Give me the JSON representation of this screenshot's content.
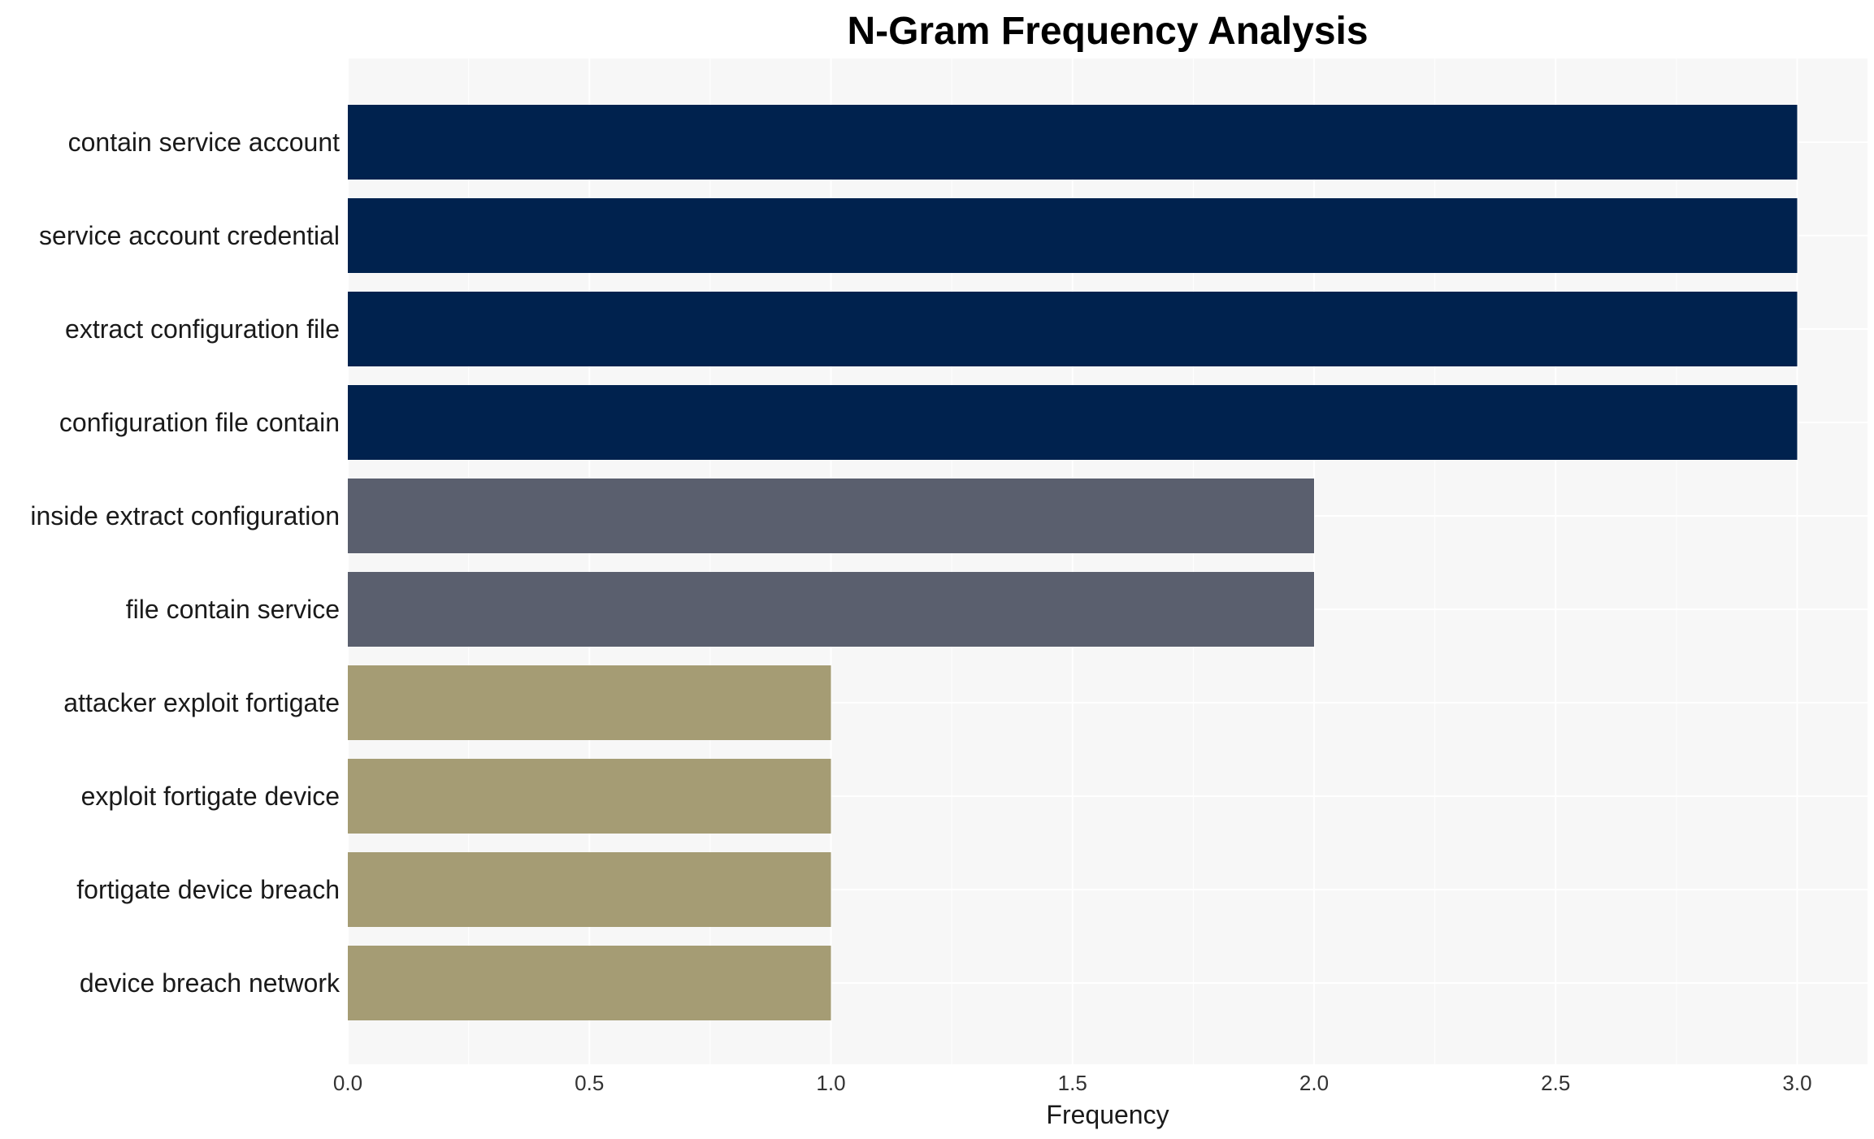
{
  "chart_data": {
    "type": "bar",
    "orientation": "horizontal",
    "title": "N-Gram Frequency Analysis",
    "xlabel": "Frequency",
    "ylabel": "",
    "xlim": [
      0,
      3.1
    ],
    "x_ticks": [
      "0.0",
      "0.5",
      "1.0",
      "1.5",
      "2.0",
      "2.5",
      "3.0"
    ],
    "grid": true,
    "categories": [
      "contain service account",
      "service account credential",
      "extract configuration file",
      "configuration file contain",
      "inside extract configuration",
      "file contain service",
      "attacker exploit fortigate",
      "exploit fortigate device",
      "fortigate device breach",
      "device breach network"
    ],
    "values": [
      3,
      3,
      3,
      3,
      2,
      2,
      1,
      1,
      1,
      1
    ],
    "colors": {
      "3": "#00224e",
      "2": "#5a5f6e",
      "1": "#a59c74"
    },
    "background": "#f7f7f7",
    "grid_color": "#ffffff"
  }
}
